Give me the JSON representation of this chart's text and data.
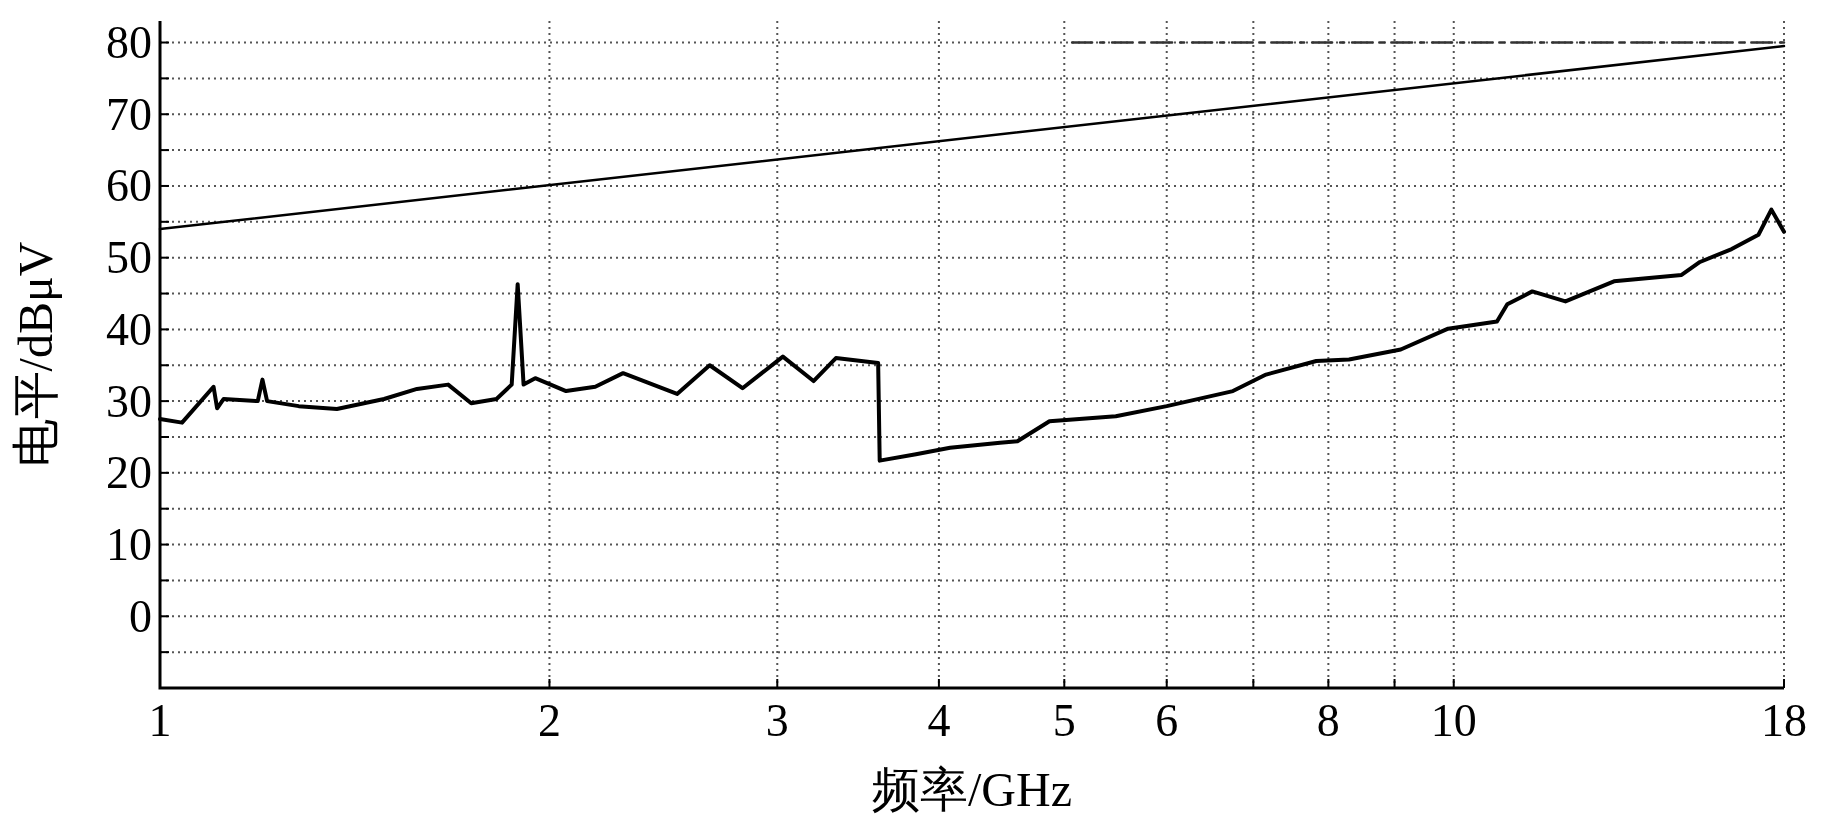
{
  "chart_data": {
    "type": "line",
    "xlabel": "频率/GHz",
    "ylabel": "电平/dBμV",
    "log": "x",
    "grid": true,
    "xlim": [
      1,
      18
    ],
    "xticks": [
      1,
      2,
      3,
      4,
      5,
      6,
      {
        "value": 7,
        "label": null
      },
      8,
      {
        "value": 9,
        "label": null
      },
      10,
      18
    ],
    "ylim": [
      -10,
      83
    ],
    "yticks": [
      {
        "value": -10,
        "label": null
      },
      {
        "value": -5,
        "label": null
      },
      0,
      {
        "value": 5,
        "label": null
      },
      10,
      {
        "value": 15,
        "label": null
      },
      20,
      {
        "value": 25,
        "label": null
      },
      30,
      {
        "value": 35,
        "label": null
      },
      40,
      {
        "value": 45,
        "label": null
      },
      50,
      {
        "value": 55,
        "label": null
      },
      60,
      {
        "value": 65,
        "label": null
      },
      70,
      {
        "value": 75,
        "label": null
      },
      80
    ],
    "series": [
      {
        "color": "#000000",
        "x": [
          1,
          1.04,
          1.1,
          1.107,
          1.12,
          1.19,
          1.2,
          1.21,
          1.28,
          1.37,
          1.49,
          1.58,
          1.67,
          1.74,
          1.82,
          1.87,
          1.89,
          1.91,
          1.95,
          2.06,
          2.17,
          2.28,
          2.51,
          2.66,
          2.82,
          3.03,
          3.2,
          3.33,
          3.59,
          3.6,
          3.84,
          4.08,
          4.46,
          4.6,
          4.87,
          5.48,
          6.0,
          6.75,
          7.16,
          7.83,
          8.3,
          9.1,
          9.9,
          10.8,
          11.0,
          11.5,
          12.2,
          13.3,
          15.0,
          15.5,
          16.4,
          17.2,
          17.6,
          18
        ],
        "values": [
          27.5,
          27,
          32,
          29,
          30.3,
          30,
          33,
          30,
          29.3,
          28.9,
          30.3,
          31.7,
          32.3,
          29.7,
          30.3,
          32.3,
          46.3,
          32.3,
          33.2,
          31.4,
          32,
          33.9,
          31,
          35,
          31.8,
          36.2,
          32.8,
          36,
          35.3,
          21.7,
          22.6,
          23.5,
          24.2,
          24.4,
          27.2,
          27.9,
          29.3,
          31.4,
          33.7,
          35.6,
          35.8,
          37.2,
          40.1,
          41.1,
          43.5,
          45.3,
          43.9,
          46.7,
          47.6,
          49.4,
          51.2,
          53.2,
          56.7,
          53.6
        ]
      },
      {
        "color": "#000000",
        "x": [
          1,
          18
        ],
        "values": [
          54,
          79.5
        ]
      },
      {
        "color": "#333333",
        "line_style": "dashed",
        "x": [
          5.07,
          18
        ],
        "values": [
          80,
          80
        ]
      }
    ]
  }
}
